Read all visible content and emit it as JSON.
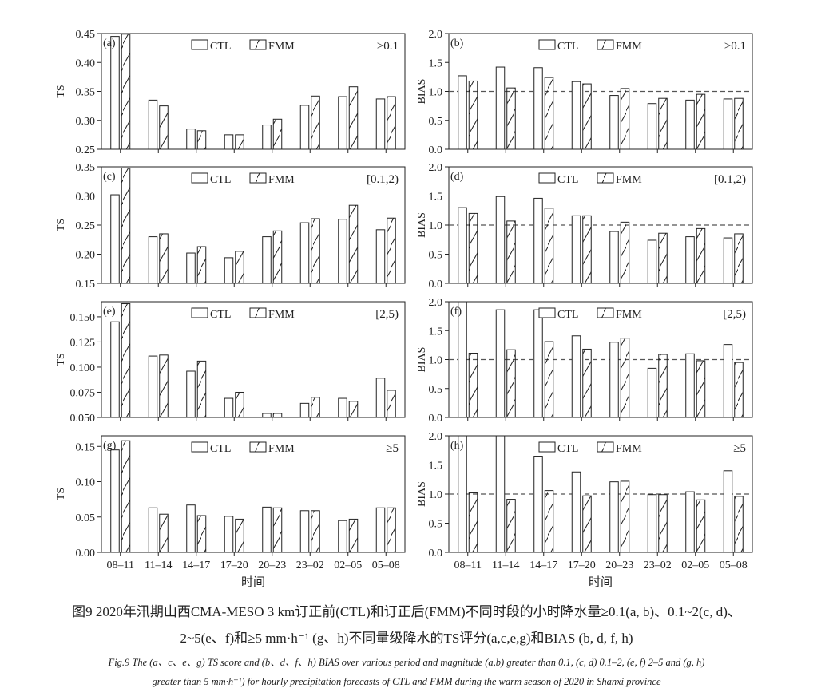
{
  "caption": {
    "zh_line1": "图9 2020年汛期山西CMA-MESO 3 km订正前(CTL)和订正后(FMM)不同时段的小时降水量≥0.1(a, b)、0.1~2(c, d)、",
    "zh_line2": "2~5(e、f)和≥5 mm·h⁻¹ (g、h)不同量级降水的TS评分(a,c,e,g)和BIAS (b, d, f, h)",
    "en_line1": "Fig.9 The (a、c、e、g) TS score and (b、d、f、h) BIAS over various period and magnitude (a,b) greater than 0.1, (c, d) 0.1–2, (e, f) 2–5 and (g, h)",
    "en_line2": "greater than 5 mm·h⁻¹) for hourly precipitation forecasts of CTL and FMM during the warm season of 2020 in Shanxi province"
  },
  "chart_data": [
    {
      "type": "bar",
      "panel": "(a)",
      "threshold": "≥0.1",
      "ylabel": "TS",
      "xlabel": "",
      "categories": [
        "08–11",
        "11–14",
        "14–17",
        "17–20",
        "20–23",
        "23–02",
        "02–05",
        "05–08"
      ],
      "ylim": [
        0.25,
        0.45
      ],
      "yticks": [
        "0.25",
        "0.30",
        "0.35",
        "0.40",
        "0.45"
      ],
      "series": [
        {
          "name": "CTL",
          "values": [
            0.445,
            0.335,
            0.285,
            0.275,
            0.292,
            0.326,
            0.341,
            0.337
          ]
        },
        {
          "name": "FMM",
          "values": [
            0.449,
            0.325,
            0.282,
            0.275,
            0.302,
            0.342,
            0.358,
            0.341
          ]
        }
      ]
    },
    {
      "type": "bar",
      "panel": "(b)",
      "threshold": "≥0.1",
      "ylabel": "BIAS",
      "xlabel": "",
      "reference_line": 1.0,
      "categories": [
        "08–11",
        "11–14",
        "14–17",
        "17–20",
        "20–23",
        "23–02",
        "02–05",
        "05–08"
      ],
      "ylim": [
        0,
        2.0
      ],
      "yticks": [
        "0.0",
        "0.5",
        "1.0",
        "1.5",
        "2.0"
      ],
      "series": [
        {
          "name": "CTL",
          "values": [
            1.27,
            1.42,
            1.41,
            1.17,
            0.93,
            0.79,
            0.85,
            0.87
          ]
        },
        {
          "name": "FMM",
          "values": [
            1.18,
            1.06,
            1.24,
            1.13,
            1.05,
            0.88,
            0.95,
            0.88
          ]
        }
      ]
    },
    {
      "type": "bar",
      "panel": "(c)",
      "threshold": "[0.1,2)",
      "ylabel": "TS",
      "xlabel": "",
      "categories": [
        "08–11",
        "11–14",
        "14–17",
        "17–20",
        "20–23",
        "23–02",
        "02–05",
        "05–08"
      ],
      "ylim": [
        0.15,
        0.35
      ],
      "yticks": [
        "0.15",
        "0.20",
        "0.25",
        "0.30",
        "0.35"
      ],
      "series": [
        {
          "name": "CTL",
          "values": [
            0.302,
            0.23,
            0.202,
            0.194,
            0.23,
            0.254,
            0.26,
            0.242
          ]
        },
        {
          "name": "FMM",
          "values": [
            0.348,
            0.235,
            0.213,
            0.205,
            0.24,
            0.261,
            0.284,
            0.262
          ]
        }
      ]
    },
    {
      "type": "bar",
      "panel": "(d)",
      "threshold": "[0.1,2)",
      "ylabel": "BIAS",
      "xlabel": "",
      "reference_line": 1.0,
      "categories": [
        "08–11",
        "11–14",
        "14–17",
        "17–20",
        "20–23",
        "23–02",
        "02–05",
        "05–08"
      ],
      "ylim": [
        0,
        2.0
      ],
      "yticks": [
        "0.0",
        "0.5",
        "1.0",
        "1.5",
        "2.0"
      ],
      "series": [
        {
          "name": "CTL",
          "values": [
            1.3,
            1.49,
            1.46,
            1.16,
            0.89,
            0.74,
            0.8,
            0.78
          ]
        },
        {
          "name": "FMM",
          "values": [
            1.2,
            1.07,
            1.29,
            1.16,
            1.05,
            0.86,
            0.94,
            0.85
          ]
        }
      ]
    },
    {
      "type": "bar",
      "panel": "(e)",
      "threshold": "[2,5)",
      "ylabel": "TS",
      "xlabel": "",
      "categories": [
        "08–11",
        "11–14",
        "14–17",
        "17–20",
        "20–23",
        "23–02",
        "02–05",
        "05–08"
      ],
      "ylim": [
        0.05,
        0.165
      ],
      "yticks": [
        "0.050",
        "0.075",
        "0.100",
        "0.125",
        "0.150"
      ],
      "series": [
        {
          "name": "CTL",
          "values": [
            0.145,
            0.111,
            0.096,
            0.069,
            0.054,
            0.064,
            0.069,
            0.089
          ]
        },
        {
          "name": "FMM",
          "values": [
            0.163,
            0.112,
            0.106,
            0.075,
            0.054,
            0.07,
            0.066,
            0.077
          ]
        }
      ]
    },
    {
      "type": "bar",
      "panel": "(f)",
      "threshold": "[2,5)",
      "ylabel": "BIAS",
      "xlabel": "",
      "reference_line": 1.0,
      "categories": [
        "08–11",
        "11–14",
        "14–17",
        "17–20",
        "20–23",
        "23–02",
        "02–05",
        "05–08"
      ],
      "ylim": [
        0,
        2.0
      ],
      "yticks": [
        "0.0",
        "0.5",
        "1.0",
        "1.5",
        "2.0"
      ],
      "series": [
        {
          "name": "CTL",
          "values": [
            2.0,
            1.86,
            1.86,
            1.41,
            1.3,
            0.85,
            1.1,
            1.26
          ]
        },
        {
          "name": "FMM",
          "values": [
            1.11,
            1.17,
            1.31,
            1.18,
            1.37,
            1.09,
            0.98,
            0.95
          ]
        }
      ]
    },
    {
      "type": "bar",
      "panel": "(g)",
      "threshold": "≥5",
      "ylabel": "TS",
      "xlabel": "时间",
      "categories": [
        "08–11",
        "11–14",
        "14–17",
        "17–20",
        "20–23",
        "23–02",
        "02–05",
        "05–08"
      ],
      "ylim": [
        0,
        0.165
      ],
      "yticks": [
        "0.00",
        "0.05",
        "0.10",
        "0.15"
      ],
      "series": [
        {
          "name": "CTL",
          "values": [
            0.145,
            0.063,
            0.067,
            0.051,
            0.064,
            0.059,
            0.045,
            0.063
          ]
        },
        {
          "name": "FMM",
          "values": [
            0.158,
            0.054,
            0.052,
            0.047,
            0.063,
            0.059,
            0.047,
            0.063
          ]
        }
      ]
    },
    {
      "type": "bar",
      "panel": "(h)",
      "threshold": "≥5",
      "ylabel": "BIAS",
      "xlabel": "时间",
      "reference_line": 1.0,
      "categories": [
        "08–11",
        "11–14",
        "14–17",
        "17–20",
        "20–23",
        "23–02",
        "02–05",
        "05–08"
      ],
      "ylim": [
        0,
        2.0
      ],
      "yticks": [
        "0.0",
        "0.5",
        "1.0",
        "1.5",
        "2.0"
      ],
      "series": [
        {
          "name": "CTL",
          "values": [
            2.0,
            2.0,
            1.65,
            1.38,
            1.21,
            0.99,
            1.04,
            1.4
          ]
        },
        {
          "name": "FMM",
          "values": [
            1.02,
            0.91,
            1.06,
            0.97,
            1.22,
            0.99,
            0.9,
            0.96
          ]
        }
      ]
    }
  ]
}
